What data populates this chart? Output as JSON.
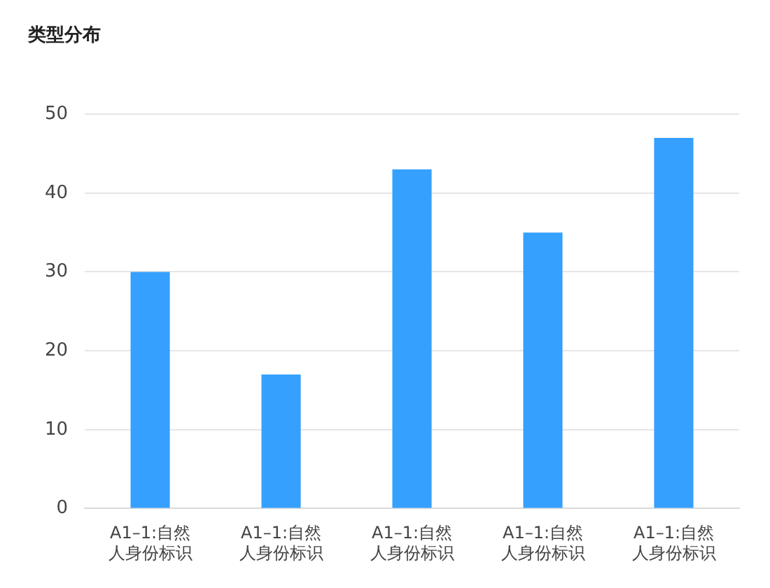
{
  "chart_data": {
    "type": "bar",
    "title": "类型分布",
    "categories": [
      "A1–1:自然人身份标识",
      "A1–1:自然人身份标识",
      "A1–1:自然人身份标识",
      "A1–1:自然人身份标识",
      "A1–1:自然人身份标识"
    ],
    "values": [
      30,
      17,
      43,
      35,
      47
    ],
    "color": "#35a0fe",
    "ylim": [
      0,
      50
    ],
    "yticks": [
      0,
      10,
      20,
      30,
      40,
      50
    ],
    "grid": "y"
  }
}
